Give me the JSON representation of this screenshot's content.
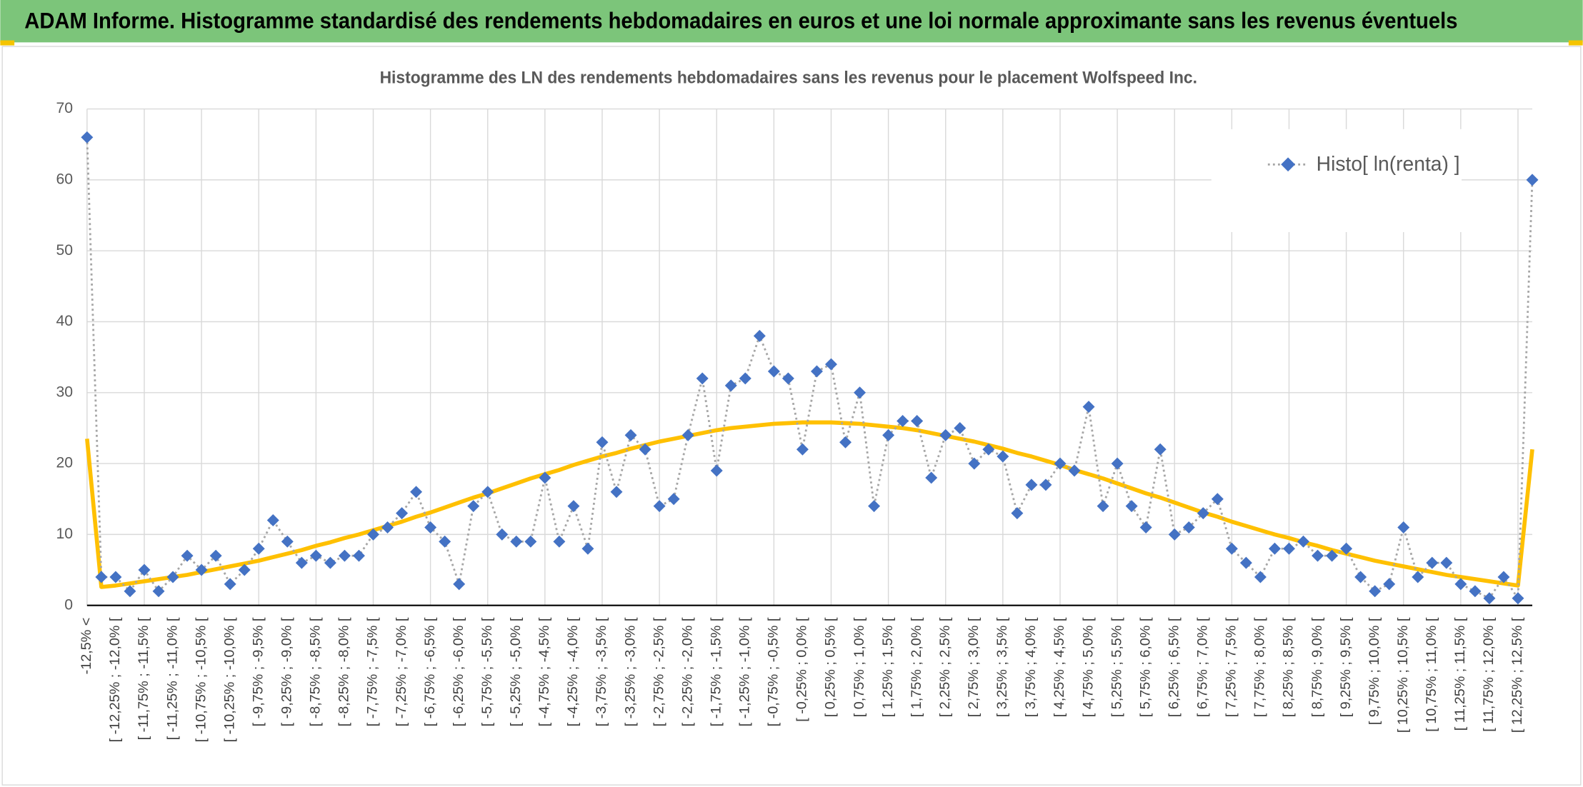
{
  "chart_data": {
    "type": "line",
    "header": "ADAM Informe. Histogramme standardisé des rendements hebdomadaires en euros et une loi normale approximante sans les revenus éventuels",
    "title": "Histogramme des LN des rendements hebdomadaires sans les revenus pour le placement Wolfspeed Inc.",
    "categories": [
      "-12,5% <",
      null,
      "[ -12,25% ; -12,0% [",
      null,
      "[ -11,75% ; -11,5% [",
      null,
      "[ -11,25% ; -11,0% [",
      null,
      "[ -10,75% ; -10,5% [",
      null,
      "[ -10,25% ; -10,0% [",
      null,
      "[ -9,75% ; -9,5% [",
      null,
      "[ -9,25% ; -9,0% [",
      null,
      "[ -8,75% ; -8,5% [",
      null,
      "[ -8,25% ; -8,0% [",
      null,
      "[ -7,75% ; -7,5% [",
      null,
      "[ -7,25% ; -7,0% [",
      null,
      "[ -6,75% ; -6,5% [",
      null,
      "[ -6,25% ; -6,0% [",
      null,
      "[ -5,75% ; -5,5% [",
      null,
      "[ -5,25% ; -5,0% [",
      null,
      "[ -4,75% ; -4,5% [",
      null,
      "[ -4,25% ; -4,0% [",
      null,
      "[ -3,75% ; -3,5% [",
      null,
      "[ -3,25% ; -3,0% [",
      null,
      "[ -2,75% ; -2,5% [",
      null,
      "[ -2,25% ; -2,0% [",
      null,
      "[ -1,75% ; -1,5% [",
      null,
      "[ -1,25% ; -1,0% [",
      null,
      "[ -0,75% ; -0,5% [",
      null,
      "[ -0,25% ; 0,0% [",
      null,
      "[ 0,25% ; 0,5% [",
      null,
      "[ 0,75% ; 1,0% [",
      null,
      "[ 1,25% ; 1,5% [",
      null,
      "[ 1,75% ; 2,0% [",
      null,
      "[ 2,25% ; 2,5% [",
      null,
      "[ 2,75% ; 3,0% [",
      null,
      "[ 3,25% ; 3,5% [",
      null,
      "[ 3,75% ; 4,0% [",
      null,
      "[ 4,25% ; 4,5% [",
      null,
      "[ 4,75% ; 5,0% [",
      null,
      "[ 5,25% ; 5,5% [",
      null,
      "[ 5,75% ; 6,0% [",
      null,
      "[ 6,25% ; 6,5% [",
      null,
      "[ 6,75% ; 7,0% [",
      null,
      "[ 7,25% ; 7,5% [",
      null,
      "[ 7,75% ; 8,0% [",
      null,
      "[ 8,25% ; 8,5% [",
      null,
      "[ 8,75% ; 9,0% [",
      null,
      "[ 9,25% ; 9,5% [",
      null,
      "[ 9,75% ; 10,0% [",
      null,
      "[ 10,25% ; 10,5% [",
      null,
      "[ 10,75% ; 11,0% [",
      null,
      "[ 11,25% ; 11,5% [",
      null,
      "[ 11,75% ; 12,0% [",
      null,
      "[ 12,25% ; 12,5% [",
      null
    ],
    "series": [
      {
        "name": "Histo[ ln(renta) ]",
        "color": "#4472c4",
        "line_color": "#a6a6a6",
        "values": [
          66,
          4,
          4,
          2,
          5,
          2,
          4,
          7,
          5,
          7,
          3,
          5,
          8,
          12,
          9,
          6,
          7,
          6,
          7,
          7,
          10,
          11,
          13,
          16,
          11,
          9,
          3,
          14,
          16,
          10,
          9,
          9,
          18,
          9,
          14,
          8,
          23,
          16,
          24,
          22,
          14,
          15,
          24,
          32,
          19,
          31,
          32,
          38,
          33,
          32,
          22,
          33,
          34,
          23,
          30,
          14,
          24,
          26,
          26,
          18,
          24,
          25,
          20,
          22,
          21,
          13,
          17,
          17,
          20,
          19,
          28,
          14,
          20,
          14,
          11,
          22,
          10,
          11,
          13,
          15,
          8,
          6,
          4,
          8,
          8,
          9,
          7,
          7,
          8,
          4,
          2,
          3,
          11,
          4,
          6,
          6,
          3,
          2,
          1,
          4,
          1,
          60
        ]
      },
      {
        "color": "#ffc000",
        "values": [
          23.5,
          2.6,
          2.8,
          3.1,
          3.4,
          3.7,
          4.0,
          4.3,
          4.7,
          5.1,
          5.5,
          5.9,
          6.3,
          6.8,
          7.3,
          7.8,
          8.4,
          8.9,
          9.5,
          10.0,
          10.6,
          11.2,
          11.8,
          12.5,
          13.1,
          13.8,
          14.5,
          15.2,
          15.8,
          16.5,
          17.2,
          17.9,
          18.5,
          19.1,
          19.8,
          20.4,
          21.0,
          21.5,
          22.1,
          22.6,
          23.1,
          23.5,
          23.9,
          24.3,
          24.7,
          25.0,
          25.2,
          25.4,
          25.6,
          25.7,
          25.8,
          25.8,
          25.8,
          25.7,
          25.6,
          25.4,
          25.2,
          25.0,
          24.7,
          24.3,
          23.9,
          23.5,
          23.1,
          22.6,
          22.1,
          21.5,
          21.0,
          20.4,
          19.8,
          19.1,
          18.5,
          17.9,
          17.2,
          16.5,
          15.8,
          15.2,
          14.5,
          13.8,
          13.1,
          12.5,
          11.8,
          11.2,
          10.6,
          10.0,
          9.5,
          8.9,
          8.4,
          7.8,
          7.3,
          6.8,
          6.3,
          5.9,
          5.5,
          5.1,
          4.7,
          4.3,
          4.0,
          3.7,
          3.4,
          3.1,
          2.8,
          22
        ]
      }
    ],
    "ylim": [
      0,
      70
    ],
    "yticks": [
      0,
      10,
      20,
      30,
      40,
      50,
      60,
      70
    ],
    "grid": true,
    "legend": "top-right"
  }
}
